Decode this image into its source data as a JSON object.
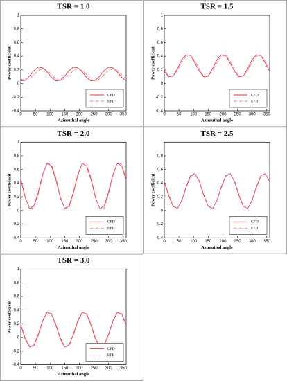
{
  "chart_data": [
    {
      "type": "line",
      "title": "TSR = 1.0",
      "x_label": "Azimuthal angle",
      "y_label": "Power coefficient",
      "x": [
        0,
        15,
        30,
        45,
        60,
        75,
        90,
        105,
        120,
        135,
        150,
        165,
        180,
        195,
        210,
        225,
        240,
        255,
        270,
        285,
        300,
        315,
        330,
        345,
        360
      ],
      "xlim": [
        0,
        360
      ],
      "xticks": [
        0,
        50,
        100,
        150,
        200,
        250,
        300,
        350
      ],
      "ylim": [
        -0.4,
        1
      ],
      "yticks": [
        -0.4,
        -0.2,
        0,
        0.2,
        0.4,
        0.6,
        0.8,
        1
      ],
      "legend": "lower right",
      "series": [
        {
          "name": "CFD",
          "color": "#e8323c",
          "values": [
            0.04,
            0.05,
            0.11,
            0.19,
            0.24,
            0.23,
            0.17,
            0.09,
            0.04,
            0.05,
            0.11,
            0.19,
            0.24,
            0.23,
            0.17,
            0.09,
            0.04,
            0.05,
            0.11,
            0.19,
            0.24,
            0.23,
            0.17,
            0.09,
            0.04
          ]
        },
        {
          "name": "EFD",
          "color": "#e0789a",
          "values": [
            0.07,
            0.04,
            0.07,
            0.13,
            0.19,
            0.22,
            0.19,
            0.13,
            0.07,
            0.04,
            0.07,
            0.13,
            0.19,
            0.22,
            0.19,
            0.13,
            0.07,
            0.04,
            0.07,
            0.13,
            0.19,
            0.22,
            0.19,
            0.13,
            0.07
          ]
        }
      ]
    },
    {
      "type": "line",
      "title": "TSR = 1.5",
      "x_label": "Azimuthal angle",
      "y_label": "Power coefficient",
      "x": [
        0,
        15,
        30,
        45,
        60,
        75,
        90,
        105,
        120,
        135,
        150,
        165,
        180,
        195,
        210,
        225,
        240,
        255,
        270,
        285,
        300,
        315,
        330,
        345,
        360
      ],
      "xlim": [
        0,
        360
      ],
      "xticks": [
        0,
        50,
        100,
        150,
        200,
        250,
        300,
        350
      ],
      "ylim": [
        -0.4,
        1
      ],
      "yticks": [
        -0.4,
        -0.2,
        0,
        0.2,
        0.4,
        0.6,
        0.8,
        1
      ],
      "legend": "lower right",
      "series": [
        {
          "name": "CFD",
          "color": "#e8323c",
          "values": [
            0.18,
            0.1,
            0.11,
            0.22,
            0.35,
            0.42,
            0.41,
            0.3,
            0.18,
            0.1,
            0.11,
            0.22,
            0.35,
            0.42,
            0.41,
            0.3,
            0.18,
            0.1,
            0.11,
            0.22,
            0.35,
            0.42,
            0.41,
            0.3,
            0.18
          ]
        },
        {
          "name": "EFD",
          "color": "#e0789a",
          "values": [
            0.21,
            0.11,
            0.11,
            0.19,
            0.31,
            0.4,
            0.41,
            0.33,
            0.21,
            0.11,
            0.11,
            0.19,
            0.31,
            0.4,
            0.41,
            0.33,
            0.21,
            0.11,
            0.11,
            0.19,
            0.31,
            0.4,
            0.41,
            0.33,
            0.21
          ]
        }
      ]
    },
    {
      "type": "line",
      "title": "TSR = 2.0",
      "x_label": "Azimuthal angle",
      "y_label": "Power coefficient",
      "x": [
        0,
        15,
        30,
        45,
        60,
        75,
        90,
        105,
        120,
        135,
        150,
        165,
        180,
        195,
        210,
        225,
        240,
        255,
        270,
        285,
        300,
        315,
        330,
        345,
        360
      ],
      "xlim": [
        0,
        360
      ],
      "xticks": [
        0,
        50,
        100,
        150,
        200,
        250,
        300,
        350
      ],
      "ylim": [
        -0.4,
        1
      ],
      "yticks": [
        -0.4,
        -0.2,
        0,
        0.2,
        0.4,
        0.6,
        0.8,
        1
      ],
      "legend": "lower right",
      "series": [
        {
          "name": "CFD",
          "color": "#e8323c",
          "values": [
            0.45,
            0.19,
            0.03,
            0.07,
            0.27,
            0.53,
            0.69,
            0.65,
            0.45,
            0.19,
            0.03,
            0.07,
            0.27,
            0.53,
            0.69,
            0.65,
            0.45,
            0.19,
            0.03,
            0.07,
            0.27,
            0.53,
            0.69,
            0.65,
            0.45
          ]
        },
        {
          "name": "EFD",
          "color": "#e0789a",
          "values": [
            0.48,
            0.21,
            0.03,
            0.04,
            0.24,
            0.51,
            0.69,
            0.68,
            0.48,
            0.21,
            0.03,
            0.04,
            0.24,
            0.51,
            0.69,
            0.68,
            0.48,
            0.21,
            0.03,
            0.04,
            0.24,
            0.51,
            0.69,
            0.68,
            0.48
          ]
        }
      ]
    },
    {
      "type": "line",
      "title": "TSR = 2.5",
      "x_label": "Azimuthal angle",
      "y_label": "Power coefficient",
      "x": [
        0,
        15,
        30,
        45,
        60,
        75,
        90,
        105,
        120,
        135,
        150,
        165,
        180,
        195,
        210,
        225,
        240,
        255,
        270,
        285,
        300,
        315,
        330,
        345,
        360
      ],
      "xlim": [
        0,
        360
      ],
      "xticks": [
        0,
        50,
        100,
        150,
        200,
        250,
        300,
        350
      ],
      "ylim": [
        -0.4,
        1
      ],
      "yticks": [
        -0.4,
        -0.2,
        0,
        0.2,
        0.4,
        0.6,
        0.8,
        1
      ],
      "legend": "lower right",
      "series": [
        {
          "name": "CFD",
          "color": "#e8323c",
          "values": [
            0.42,
            0.22,
            0.06,
            0.03,
            0.15,
            0.35,
            0.51,
            0.54,
            0.42,
            0.22,
            0.06,
            0.03,
            0.15,
            0.35,
            0.51,
            0.54,
            0.42,
            0.22,
            0.06,
            0.03,
            0.15,
            0.35,
            0.51,
            0.54,
            0.42
          ]
        },
        {
          "name": "EFD",
          "color": "#e0789a",
          "values": [
            0.43,
            0.24,
            0.07,
            0.03,
            0.14,
            0.33,
            0.5,
            0.54,
            0.43,
            0.24,
            0.07,
            0.03,
            0.14,
            0.33,
            0.5,
            0.54,
            0.43,
            0.24,
            0.07,
            0.03,
            0.14,
            0.33,
            0.5,
            0.54,
            0.43
          ]
        }
      ]
    },
    {
      "type": "line",
      "title": "TSR = 3.0",
      "x_label": "Azimuthal angle",
      "y_label": "Power coefficient",
      "x": [
        0,
        15,
        30,
        45,
        60,
        75,
        90,
        105,
        120,
        135,
        150,
        165,
        180,
        195,
        210,
        225,
        240,
        255,
        270,
        285,
        300,
        315,
        330,
        345,
        360
      ],
      "xlim": [
        0,
        360
      ],
      "xticks": [
        0,
        50,
        100,
        150,
        200,
        250,
        300,
        350
      ],
      "ylim": [
        -0.4,
        1
      ],
      "yticks": [
        -0.4,
        -0.2,
        0,
        0.2,
        0.4,
        0.6,
        0.8,
        1
      ],
      "legend": "lower right",
      "series": [
        {
          "name": "CFD",
          "color": "#e8323c",
          "values": [
            0.18,
            -0.02,
            -0.14,
            -0.11,
            0.05,
            0.25,
            0.37,
            0.34,
            0.18,
            -0.02,
            -0.14,
            -0.11,
            0.05,
            0.25,
            0.37,
            0.34,
            0.18,
            -0.02,
            -0.14,
            -0.11,
            0.05,
            0.25,
            0.37,
            0.34,
            0.18
          ]
        },
        {
          "name": "EFD",
          "color": "#e0789a",
          "values": [
            0.2,
            0.0,
            -0.13,
            -0.12,
            0.03,
            0.23,
            0.36,
            0.35,
            0.2,
            0.0,
            -0.13,
            -0.12,
            0.03,
            0.23,
            0.36,
            0.35,
            0.2,
            0.0,
            -0.13,
            -0.12,
            0.03,
            0.23,
            0.36,
            0.35,
            0.2
          ]
        }
      ]
    }
  ]
}
